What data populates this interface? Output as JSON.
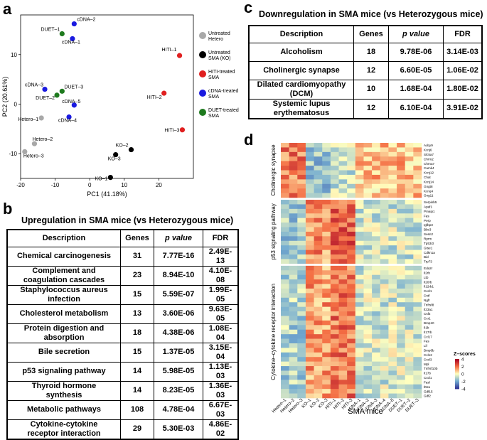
{
  "panel_letters": {
    "a": "a",
    "b": "b",
    "c": "c",
    "d": "d"
  },
  "chart_data": [
    {
      "type": "scatter",
      "panel": "a",
      "xlabel": "PC1 (41.18%)",
      "ylabel": "PC2 (20.61%)",
      "xlim": [
        -20,
        30
      ],
      "ylim": [
        -15,
        18
      ],
      "xticks": [
        -20,
        -10,
        0,
        10,
        20
      ],
      "yticks": [
        -10,
        0,
        10
      ],
      "points": [
        {
          "label": "cDNA–2",
          "x": -4.5,
          "y": 16.2,
          "group": "cDNA"
        },
        {
          "label": "DUET–1",
          "x": -8.0,
          "y": 14.2,
          "group": "DUET"
        },
        {
          "label": "cDNA–1",
          "x": -5.0,
          "y": 13.2,
          "group": "cDNA"
        },
        {
          "label": "HITI–1",
          "x": 26.0,
          "y": 9.8,
          "group": "HITI"
        },
        {
          "label": "cDNA–3",
          "x": -13.0,
          "y": 3.0,
          "group": "cDNA"
        },
        {
          "label": "DUET–3",
          "x": -8.0,
          "y": 2.6,
          "group": "DUET"
        },
        {
          "label": "DUET–2",
          "x": -9.5,
          "y": 1.8,
          "group": "DUET"
        },
        {
          "label": "HITI–2",
          "x": 21.5,
          "y": 2.2,
          "group": "HITI"
        },
        {
          "label": "cDNA–5",
          "x": -4.5,
          "y": -0.2,
          "group": "cDNA"
        },
        {
          "label": "Hetero–1",
          "x": -14.0,
          "y": -2.8,
          "group": "Hetero"
        },
        {
          "label": "cDNA–4",
          "x": -6.0,
          "y": -2.6,
          "group": "cDNA"
        },
        {
          "label": "HITI–3",
          "x": 26.8,
          "y": -5.2,
          "group": "HITI"
        },
        {
          "label": "Hetero–2",
          "x": -16.0,
          "y": -8.0,
          "group": "Hetero"
        },
        {
          "label": "KO–2",
          "x": 12.0,
          "y": -9.2,
          "group": "KO"
        },
        {
          "label": "Hetero–3",
          "x": -18.8,
          "y": -9.6,
          "group": "Hetero"
        },
        {
          "label": "KO–3",
          "x": 7.5,
          "y": -10.2,
          "group": "KO"
        },
        {
          "label": "KO–1",
          "x": 6.0,
          "y": -14.8,
          "group": "KO"
        }
      ],
      "legend": [
        {
          "group": "Hetero",
          "label1": "Untreated",
          "label2": "Hetero",
          "color": "#a8a8a8"
        },
        {
          "group": "KO",
          "label1": "Untreated",
          "label2": "SMA (KO)",
          "color": "#000000"
        },
        {
          "group": "HITI",
          "label1": "HITI-treated",
          "label2": "SMA",
          "color": "#e02020"
        },
        {
          "group": "cDNA",
          "label1": "cDNA-treated",
          "label2": "SMA",
          "color": "#1a1ae0"
        },
        {
          "group": "DUET",
          "label1": "DUET-treated",
          "label2": "SMA",
          "color": "#1e7a1e"
        }
      ]
    },
    {
      "type": "heatmap",
      "panel": "d",
      "xlabel": "SMA mice",
      "columns": [
        "Hetero–1",
        "Hetero–2",
        "Hetero–3",
        "KO–1",
        "KO–2",
        "KO–3",
        "HITI–1",
        "HITI–2",
        "HITI–3",
        "cDNA–1",
        "cDNA–2",
        "cDNA–3",
        "cDNA–4",
        "cDNA–5",
        "DUET–1",
        "DUET–2",
        "DUET–3"
      ],
      "row_groups": [
        {
          "name": "Cholinergic synapse",
          "genes": [
            "Adcy9",
            "Kcnj6",
            "Slc5a7",
            "Chrm2",
            "Chrna7",
            "Camk4",
            "Kcnj12",
            "Chat",
            "Kcnj14",
            "Gngt8",
            "Kcnq4",
            "Gng11"
          ]
        },
        {
          "name": "p53 signaling pathway",
          "genes": [
            "Serpinb5",
            "Apaf1",
            "Pmaip1",
            "Fas",
            "Perp",
            "Igfbp3",
            "Bbc3",
            "Sesn2",
            "Rprm",
            "Tp53i3",
            "Gtse1",
            "Cdkn1a",
            "Bid",
            "Trp73"
          ]
        },
        {
          "name": "Cytokine–cytokine receptor interaction",
          "genes": [
            "Eda2r",
            "Il2rb",
            "Ltb",
            "Il20rb",
            "Il12rb1",
            "Cxcl1",
            "Cntf",
            "Ngfr",
            "Tnfrsf8",
            "Il23a1",
            "Csf2",
            "Ccr1",
            "Bmp10",
            "Il1b",
            "Il17rb",
            "Ccl17",
            "Fas",
            "Lif",
            "Bmp6b",
            "Ccl12",
            "Cxcl3",
            "Mpl",
            "Tnfrsf10b",
            "Il17b",
            "Cxcl1",
            "Fasl",
            "Il5ra",
            "Gdf15",
            "Gdf2"
          ]
        }
      ],
      "colorbar": {
        "title": "Z–scores",
        "ticks": [
          4,
          2,
          0,
          -2,
          -4
        ]
      }
    }
  ],
  "table_b": {
    "title": "Upregulation in SMA mice (vs Heterozygous mice)",
    "headers": [
      "Description",
      "Genes",
      "p value",
      "FDR"
    ],
    "rows": [
      {
        "d1": "Chemical carcinogenesis",
        "d2": "",
        "genes": "31",
        "p": "7.77E-16",
        "fdr": "2.49E-13"
      },
      {
        "d1": "Complement and",
        "d2": "coagulation cascades",
        "genes": "23",
        "p": "8.94E-10",
        "fdr": "4.10E-08"
      },
      {
        "d1": "Staphylococcus aureus",
        "d2": "infection",
        "genes": "15",
        "p": "5.59E-07",
        "fdr": "1.99E-05"
      },
      {
        "d1": "Cholesterol metabolism",
        "d2": "",
        "genes": "13",
        "p": "3.60E-06",
        "fdr": "9.63E-05"
      },
      {
        "d1": "Protein digestion and",
        "d2": "absorption",
        "genes": "18",
        "p": "4.38E-06",
        "fdr": "1.08E-04"
      },
      {
        "d1": "Bile secretion",
        "d2": "",
        "genes": "15",
        "p": "1.37E-05",
        "fdr": "3.15E-04"
      },
      {
        "d1": "p53 signaling pathway",
        "d2": "",
        "genes": "14",
        "p": "5.98E-05",
        "fdr": "1.13E-03"
      },
      {
        "d1": "Thyroid hormone",
        "d2": "synthesis",
        "genes": "14",
        "p": "8.23E-05",
        "fdr": "1.36E-03"
      },
      {
        "d1": "Metabolic pathways",
        "d2": "",
        "genes": "108",
        "p": "4.78E-04",
        "fdr": "6.67E-03"
      },
      {
        "d1": "Cytokine-cytokine",
        "d2": "receptor interaction",
        "genes": "29",
        "p": "5.30E-03",
        "fdr": "4.86E-02"
      }
    ]
  },
  "table_c": {
    "title": "Downregulation in SMA mice (vs Heterozygous mice)",
    "headers": [
      "Description",
      "Genes",
      "p value",
      "FDR"
    ],
    "rows": [
      {
        "d1": "Alcoholism",
        "d2": "",
        "genes": "18",
        "p": "9.78E-06",
        "fdr": "3.14E-03"
      },
      {
        "d1": "Cholinergic synapse",
        "d2": "",
        "genes": "12",
        "p": "6.60E-05",
        "fdr": "1.06E-02"
      },
      {
        "d1": "Dilated cardiomyopathy",
        "d2": "(DCM)",
        "genes": "10",
        "p": "1.68E-04",
        "fdr": "1.80E-02"
      },
      {
        "d1": "Systemic lupus",
        "d2": "erythematosus",
        "genes": "12",
        "p": "6.10E-04",
        "fdr": "3.91E-02"
      }
    ]
  }
}
